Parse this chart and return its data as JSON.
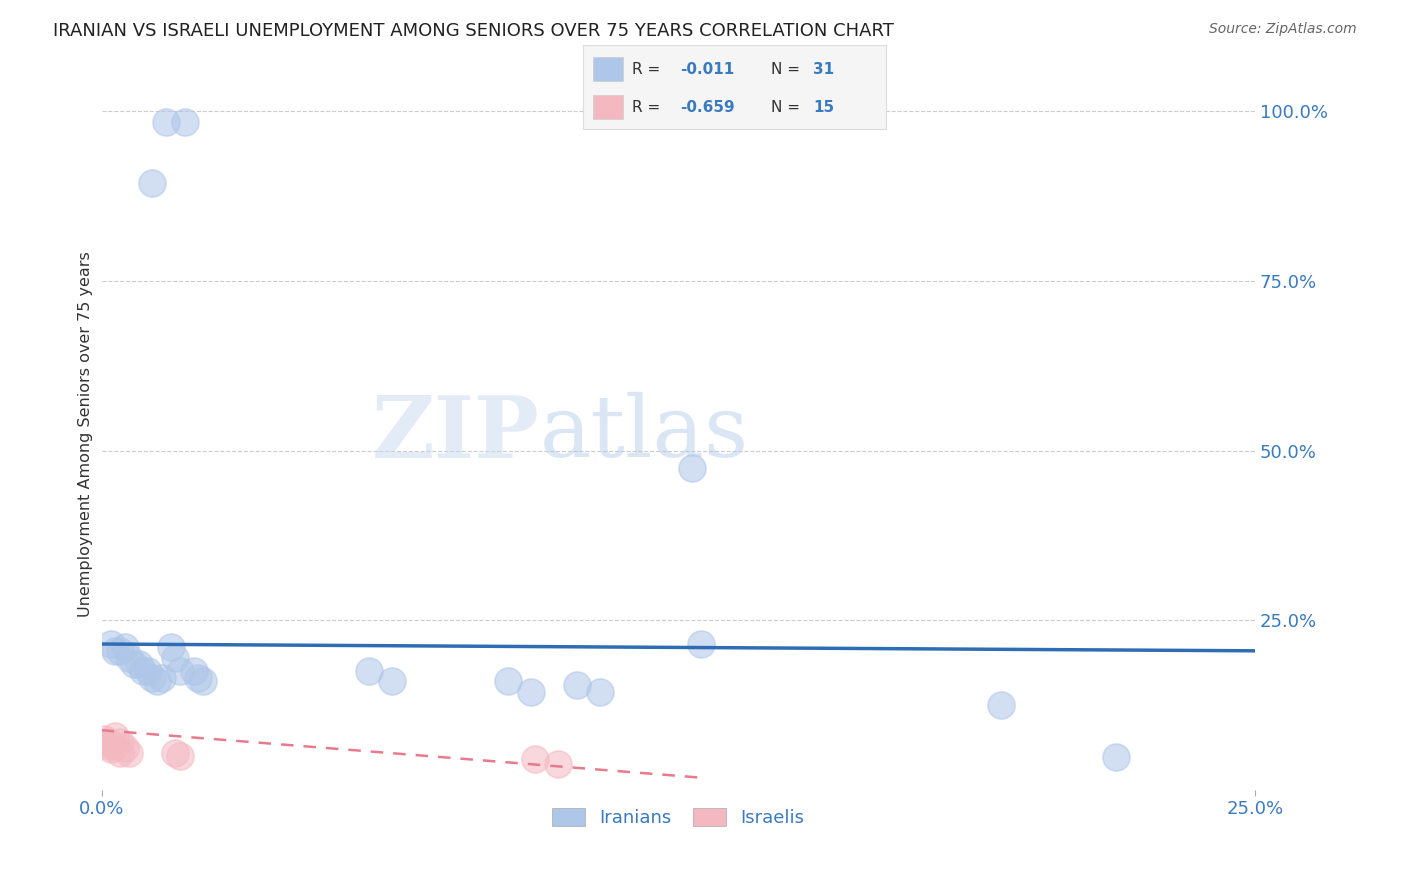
{
  "title": "IRANIAN VS ISRAELI UNEMPLOYMENT AMONG SENIORS OVER 75 YEARS CORRELATION CHART",
  "source": "Source: ZipAtlas.com",
  "ylabel_label": "Unemployment Among Seniors over 75 years",
  "right_ytick_vals": [
    1.0,
    0.75,
    0.5,
    0.25
  ],
  "right_ytick_labels": [
    "100.0%",
    "75.0%",
    "50.0%",
    "25.0%"
  ],
  "xlim": [
    0.0,
    0.25
  ],
  "ylim": [
    0.0,
    1.05
  ],
  "xtick_vals": [
    0.0,
    0.25
  ],
  "xtick_labels": [
    "0.0%",
    "25.0%"
  ],
  "watermark_part1": "ZIP",
  "watermark_part2": "atlas",
  "iranians_scatter": [
    [
      0.014,
      0.985
    ],
    [
      0.018,
      0.985
    ],
    [
      0.011,
      0.895
    ],
    [
      0.002,
      0.215
    ],
    [
      0.003,
      0.205
    ],
    [
      0.004,
      0.205
    ],
    [
      0.005,
      0.21
    ],
    [
      0.006,
      0.195
    ],
    [
      0.007,
      0.185
    ],
    [
      0.008,
      0.185
    ],
    [
      0.009,
      0.175
    ],
    [
      0.01,
      0.175
    ],
    [
      0.011,
      0.165
    ],
    [
      0.012,
      0.16
    ],
    [
      0.013,
      0.165
    ],
    [
      0.015,
      0.21
    ],
    [
      0.016,
      0.195
    ],
    [
      0.017,
      0.175
    ],
    [
      0.02,
      0.175
    ],
    [
      0.021,
      0.165
    ],
    [
      0.022,
      0.16
    ],
    [
      0.058,
      0.175
    ],
    [
      0.063,
      0.16
    ],
    [
      0.088,
      0.16
    ],
    [
      0.093,
      0.145
    ],
    [
      0.103,
      0.155
    ],
    [
      0.108,
      0.145
    ],
    [
      0.128,
      0.475
    ],
    [
      0.13,
      0.215
    ],
    [
      0.195,
      0.125
    ],
    [
      0.22,
      0.048
    ]
  ],
  "israelis_scatter": [
    [
      0.0005,
      0.075
    ],
    [
      0.001,
      0.07
    ],
    [
      0.0015,
      0.065
    ],
    [
      0.002,
      0.068
    ],
    [
      0.002,
      0.06
    ],
    [
      0.003,
      0.065
    ],
    [
      0.003,
      0.08
    ],
    [
      0.004,
      0.07
    ],
    [
      0.004,
      0.055
    ],
    [
      0.005,
      0.062
    ],
    [
      0.006,
      0.055
    ],
    [
      0.016,
      0.055
    ],
    [
      0.017,
      0.05
    ],
    [
      0.094,
      0.045
    ],
    [
      0.099,
      0.038
    ]
  ],
  "iranian_trend_x": [
    0.0,
    0.25
  ],
  "iranian_trend_y": [
    0.215,
    0.205
  ],
  "israeli_trend_x": [
    0.0,
    0.13
  ],
  "israeli_trend_y": [
    0.088,
    0.018
  ],
  "iranian_trend_color": "#2e6db4",
  "israeli_trend_color": "#e87a8c",
  "iranian_scatter_color": "#aec6e8",
  "israeli_scatter_color": "#f4b8c1",
  "background_color": "#ffffff",
  "grid_color": "#cccccc",
  "title_color": "#222222",
  "axis_label_color": "#3a7abf",
  "source_color": "#666666",
  "legend_text_color": "#3a7abf",
  "legend_box_color": "#f5f5f5",
  "legend_border_color": "#dddddd",
  "watermark_color1": "#c8d8ee",
  "watermark_color2": "#b0c8e8"
}
